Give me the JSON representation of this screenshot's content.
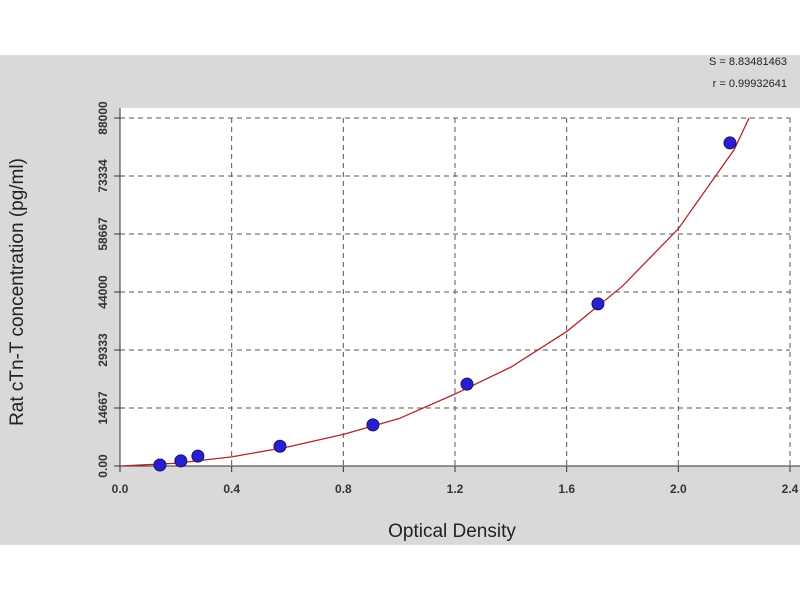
{
  "chart_data": {
    "type": "scatter",
    "x_label": "Optical Density",
    "y_label": "Rat cTn-T concentration (pg/ml)",
    "stats": [
      "S = 8.83481463",
      "r = 0.99932641"
    ],
    "series": [
      {
        "color": "#2a1fcf",
        "x": [
          0.143,
          0.218,
          0.279,
          0.573,
          0.906,
          1.243,
          1.712,
          2.185
        ],
        "values": [
          250,
          1300,
          2500,
          5000,
          10400,
          20700,
          41000,
          81700
        ]
      }
    ],
    "fit": {
      "color": "#b8232a",
      "x": [
        0,
        0.2,
        0.4,
        0.6,
        0.8,
        1.0,
        1.2,
        1.4,
        1.6,
        1.8,
        2.0,
        2.2,
        2.28
      ],
      "values": [
        0,
        700,
        2300,
        4800,
        8000,
        12000,
        18200,
        25000,
        34000,
        45500,
        60000,
        80000,
        92000
      ]
    },
    "xlim": [
      0,
      2.4
    ],
    "xticks": [
      {
        "value": 0,
        "label": "0.0"
      },
      0.4,
      0.8,
      1.2,
      1.6,
      {
        "value": 2,
        "label": "2.0"
      },
      2.4
    ],
    "ylim": [
      0,
      88000
    ],
    "yticks": [
      {
        "value": 0,
        "label": "0.00"
      },
      14667,
      29333,
      44000,
      58667,
      73334,
      88000
    ],
    "grid": true
  }
}
